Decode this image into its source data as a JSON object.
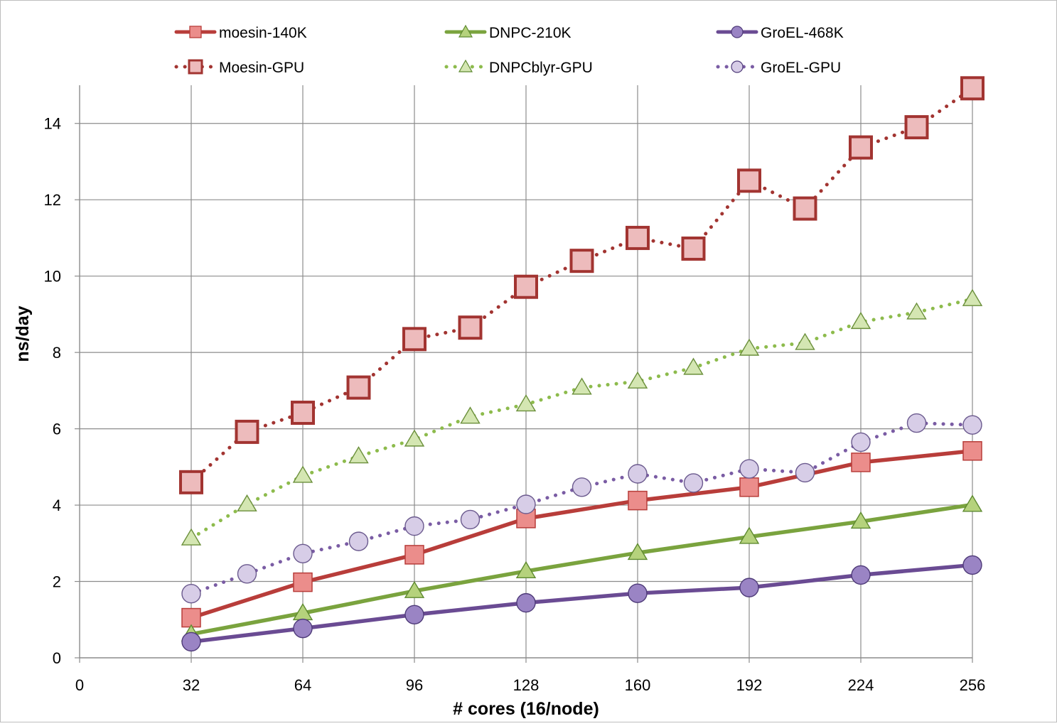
{
  "chart_data": {
    "type": "line",
    "title": "",
    "xlabel": "# cores (16/node)",
    "ylabel": "ns/day",
    "xlim": [
      0,
      256
    ],
    "ylim": [
      0,
      15
    ],
    "x_ticks": [
      0,
      32,
      64,
      96,
      128,
      160,
      192,
      224,
      256
    ],
    "y_ticks": [
      0,
      2,
      4,
      6,
      8,
      10,
      12,
      14
    ],
    "grid": true,
    "legend_position": "top",
    "series": [
      {
        "name": "moesin-140K",
        "color": "#b83d3a",
        "fill": "#eb8d8b",
        "style": "solid",
        "marker": "square",
        "x": [
          32,
          64,
          96,
          128,
          160,
          192,
          224,
          256
        ],
        "y": [
          1.05,
          1.98,
          2.7,
          3.65,
          4.12,
          4.47,
          5.12,
          5.42
        ]
      },
      {
        "name": "DNPC-210K",
        "color": "#7aa33e",
        "fill": "#b5d27c",
        "style": "solid",
        "marker": "triangle",
        "x": [
          32,
          64,
          96,
          128,
          160,
          192,
          224,
          256
        ],
        "y": [
          0.62,
          1.17,
          1.75,
          2.27,
          2.75,
          3.17,
          3.57,
          4.01
        ]
      },
      {
        "name": "GroEL-468K",
        "color": "#6a4b93",
        "fill": "#9a84c4",
        "style": "solid",
        "marker": "circle",
        "x": [
          32,
          64,
          96,
          128,
          160,
          192,
          224,
          256
        ],
        "y": [
          0.42,
          0.77,
          1.13,
          1.44,
          1.69,
          1.84,
          2.17,
          2.43
        ]
      },
      {
        "name": "Moesin-GPU",
        "color": "#a23431",
        "fill": "#edbbbc",
        "style": "dotted",
        "marker": "square",
        "x": [
          32,
          48,
          64,
          80,
          96,
          112,
          128,
          144,
          160,
          176,
          192,
          208,
          224,
          240,
          256
        ],
        "y": [
          4.6,
          5.92,
          6.42,
          7.08,
          8.35,
          8.65,
          9.72,
          10.4,
          11.0,
          10.72,
          12.5,
          11.77,
          13.37,
          13.9,
          14.92
        ]
      },
      {
        "name": "DNPCblyr-GPU",
        "color": "#8dbb4c",
        "fill": "#d4e6b2",
        "style": "dotted",
        "marker": "triangle",
        "x": [
          32,
          48,
          64,
          80,
          96,
          112,
          128,
          144,
          160,
          176,
          192,
          208,
          224,
          240,
          256
        ],
        "y": [
          3.13,
          4.02,
          4.77,
          5.28,
          5.72,
          6.32,
          6.64,
          7.08,
          7.24,
          7.6,
          8.1,
          8.25,
          8.8,
          9.05,
          9.4
        ]
      },
      {
        "name": "GroEL-GPU",
        "color": "#7a5ca4",
        "fill": "#d7cde7",
        "style": "dotted",
        "marker": "circle",
        "x": [
          32,
          48,
          64,
          80,
          96,
          112,
          128,
          144,
          160,
          176,
          192,
          208,
          224,
          240,
          256
        ],
        "y": [
          1.68,
          2.2,
          2.73,
          3.05,
          3.45,
          3.62,
          4.02,
          4.47,
          4.82,
          4.58,
          4.95,
          4.85,
          5.65,
          6.15,
          6.1
        ]
      }
    ]
  }
}
